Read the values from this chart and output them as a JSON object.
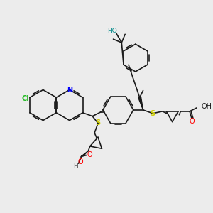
{
  "bg_color": "#ececec",
  "bond_color": "#1a1a1a",
  "colors": {
    "N": "#0000ff",
    "O": "#ff0000",
    "S": "#cccc00",
    "Cl": "#22bb22",
    "HO": "#008888",
    "H": "#555555"
  },
  "figsize": [
    3.0,
    3.0
  ],
  "dpi": 100
}
